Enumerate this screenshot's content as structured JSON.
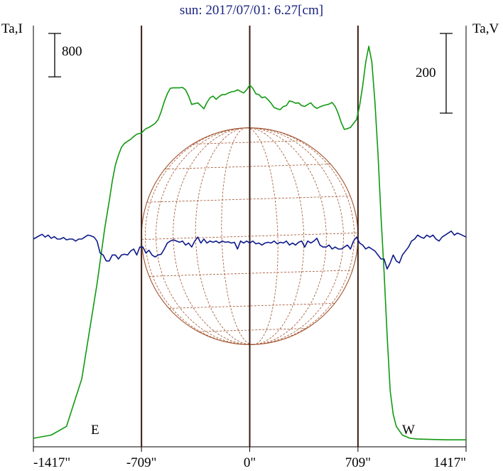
{
  "chart_data": {
    "type": "line",
    "title": "sun: 2017/07/01: 6.27[cm]",
    "ylabel_left": "Ta,I",
    "ylabel_right": "Ta,V",
    "scale_left": "800",
    "scale_right": "200",
    "limb_left": "E",
    "limb_right": "W",
    "x_tick_labels": [
      "-1417\"",
      "-709\"",
      "0\"",
      "709\"",
      "1417\""
    ],
    "x_ticks": [
      -1417,
      -709,
      0,
      709,
      1417
    ],
    "xlim": [
      -1417,
      1417
    ],
    "disk_radius_arcsec": 709,
    "axis": "tilted",
    "colors": {
      "stokes_i": "#119911",
      "stokes_v": "#0d1a8a",
      "disk": "#a0522d",
      "limb_lines": "#3a1c10"
    },
    "series": [
      {
        "key": "I",
        "relative_scale": "I",
        "x": [
          -1417,
          -1300,
          -1200,
          -1100,
          -1000,
          -950,
          -920,
          -900,
          -880,
          -860,
          -840,
          -820,
          -800,
          -780,
          -760,
          -740,
          -720,
          -710,
          -700,
          -680,
          -660,
          -640,
          -620,
          -600,
          -580,
          -560,
          -540,
          -520,
          -500,
          -480,
          -460,
          -440,
          -420,
          -400,
          -380,
          -360,
          -340,
          -320,
          -300,
          -280,
          -260,
          -240,
          -220,
          -200,
          -180,
          -160,
          -140,
          -120,
          -100,
          -80,
          -60,
          -40,
          -20,
          0,
          20,
          40,
          60,
          80,
          100,
          120,
          140,
          160,
          180,
          200,
          220,
          240,
          260,
          280,
          300,
          320,
          340,
          360,
          380,
          400,
          420,
          440,
          460,
          480,
          500,
          520,
          540,
          560,
          580,
          600,
          620,
          640,
          660,
          680,
          700,
          720,
          740,
          760,
          780,
          800,
          820,
          840,
          860,
          880,
          900,
          920,
          940,
          960,
          1000,
          1050,
          1100,
          1200,
          1300,
          1417
        ],
        "values": [
          0,
          80,
          300,
          1500,
          3900,
          5300,
          6000,
          6500,
          6900,
          7150,
          7350,
          7450,
          7500,
          7550,
          7620,
          7680,
          7700,
          7700,
          7750,
          7820,
          7850,
          7900,
          7950,
          8050,
          8250,
          8500,
          8700,
          8840,
          8850,
          8850,
          8850,
          8860,
          8800,
          8640,
          8430,
          8450,
          8470,
          8400,
          8320,
          8480,
          8600,
          8640,
          8560,
          8630,
          8680,
          8680,
          8720,
          8750,
          8760,
          8800,
          8760,
          8720,
          8800,
          8920,
          8840,
          8700,
          8680,
          8600,
          8620,
          8550,
          8460,
          8350,
          8320,
          8300,
          8380,
          8400,
          8520,
          8500,
          8460,
          8470,
          8400,
          8380,
          8430,
          8470,
          8380,
          8330,
          8370,
          8400,
          8420,
          8440,
          8480,
          8380,
          8200,
          7970,
          7800,
          7820,
          7850,
          7950,
          8050,
          8400,
          8900,
          9500,
          9900,
          9500,
          8500,
          7200,
          5600,
          4200,
          2600,
          1200,
          600,
          300,
          80,
          0,
          -20,
          -30,
          -40,
          -40
        ]
      },
      {
        "key": "V",
        "relative_scale": "V",
        "x": [
          -1417,
          -1380,
          -1360,
          -1340,
          -1320,
          -1300,
          -1280,
          -1260,
          -1240,
          -1220,
          -1200,
          -1180,
          -1160,
          -1140,
          -1120,
          -1100,
          -1080,
          -1060,
          -1040,
          -1020,
          -1000,
          -980,
          -960,
          -940,
          -920,
          -900,
          -880,
          -860,
          -840,
          -820,
          -800,
          -780,
          -760,
          -740,
          -720,
          -700,
          -680,
          -660,
          -640,
          -620,
          -600,
          -580,
          -560,
          -540,
          -520,
          -500,
          -480,
          -460,
          -440,
          -420,
          -400,
          -380,
          -360,
          -340,
          -320,
          -300,
          -280,
          -260,
          -240,
          -220,
          -200,
          -180,
          -160,
          -140,
          -120,
          -100,
          -80,
          -60,
          -40,
          -20,
          0,
          20,
          40,
          60,
          80,
          100,
          120,
          140,
          160,
          180,
          200,
          220,
          240,
          260,
          280,
          300,
          320,
          340,
          360,
          380,
          400,
          420,
          440,
          460,
          480,
          500,
          520,
          540,
          560,
          580,
          600,
          620,
          640,
          660,
          680,
          700,
          720,
          740,
          760,
          780,
          800,
          820,
          840,
          860,
          880,
          900,
          920,
          940,
          960,
          980,
          1000,
          1020,
          1040,
          1060,
          1080,
          1100,
          1120,
          1140,
          1160,
          1180,
          1200,
          1220,
          1240,
          1260,
          1280,
          1300,
          1320,
          1340,
          1360,
          1380,
          1417
        ],
        "values": [
          0,
          8,
          12,
          5,
          10,
          2,
          6,
          0,
          0,
          4,
          -2,
          0,
          0,
          -5,
          0,
          0,
          5,
          10,
          8,
          5,
          -5,
          -35,
          -40,
          -55,
          -55,
          -40,
          -40,
          -50,
          -40,
          -38,
          -40,
          -30,
          -25,
          -40,
          -20,
          -20,
          -35,
          -28,
          -40,
          -45,
          -40,
          -38,
          -25,
          -10,
          -5,
          -2,
          -5,
          -8,
          -5,
          -15,
          -10,
          -20,
          -5,
          5,
          -10,
          0,
          -10,
          -5,
          -8,
          -5,
          -10,
          -5,
          -8,
          -7,
          -10,
          -8,
          -25,
          -5,
          -10,
          -5,
          -10,
          -5,
          -12,
          -10,
          -15,
          -10,
          -8,
          -10,
          -5,
          -12,
          -8,
          -10,
          -5,
          -15,
          -10,
          -15,
          -8,
          -5,
          -20,
          -5,
          -10,
          -5,
          2,
          -15,
          -20,
          -20,
          -15,
          -25,
          -20,
          -25,
          -25,
          -20,
          -15,
          -25,
          -5,
          5,
          -10,
          -15,
          -25,
          -20,
          -25,
          -30,
          -40,
          -50,
          -50,
          -75,
          -60,
          -40,
          -55,
          -60,
          -40,
          -30,
          -20,
          -5,
          0,
          10,
          5,
          2,
          10,
          5,
          10,
          0,
          -5,
          5,
          10,
          15,
          20,
          10,
          15,
          12,
          5
        ]
      }
    ]
  }
}
